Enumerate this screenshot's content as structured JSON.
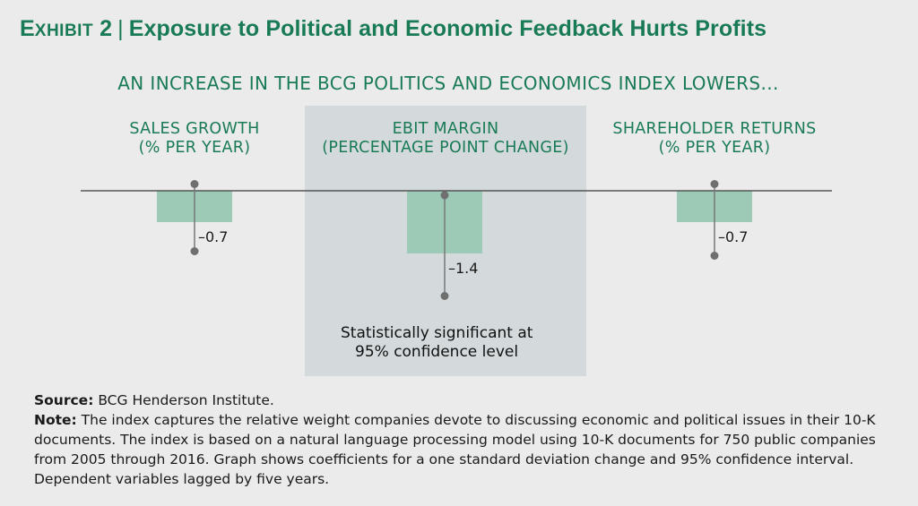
{
  "title": {
    "exhibit_first": "E",
    "exhibit_rest": "XHIBIT",
    "exhibit_num": "2",
    "separator": "|",
    "text": "Exposure to Political and Economic Feedback Hurts Profits"
  },
  "chart_data": {
    "type": "bar",
    "title": "AN INCREASE IN THE BCG POLITICS AND ECONOMICS INDEX LOWERS...",
    "categories": [
      {
        "line1": "SALES GROWTH",
        "line2": "(% PER YEAR)"
      },
      {
        "line1": "EBIT MARGIN",
        "line2": "(PERCENTAGE POINT CHANGE)"
      },
      {
        "line1": "SHAREHOLDER RETURNS",
        "line2": "(% PER YEAR)"
      }
    ],
    "values": [
      -0.7,
      -1.4,
      -0.7
    ],
    "value_labels": [
      "–0.7",
      "–1.4",
      "–0.7"
    ],
    "ci": [
      [
        -1.35,
        0.15
      ],
      [
        -2.35,
        -0.1
      ],
      [
        -1.45,
        0.15
      ]
    ],
    "highlighted_index": 1,
    "ylim": [
      -2.5,
      0.5
    ],
    "colors": {
      "bar": "#9ccab7",
      "axis": "#555555",
      "whisker": "#777777",
      "highlight": "#d4dadc"
    }
  },
  "annotation": {
    "line1": "Statistically significant at",
    "line2": "95% confidence level"
  },
  "footer": {
    "source_label": "Source:",
    "source_text": " BCG Henderson Institute.",
    "note_label": "Note:",
    "note_text": "  The index captures the relative weight companies devote to discussing economic and political issues in their 10-K documents. The index is based on a natural language processing model using 10-K documents for 750 public companies from 2005 through 2016. Graph shows coefficients for a one standard deviation change and 95% confidence interval. Dependent variables lagged by five years."
  }
}
